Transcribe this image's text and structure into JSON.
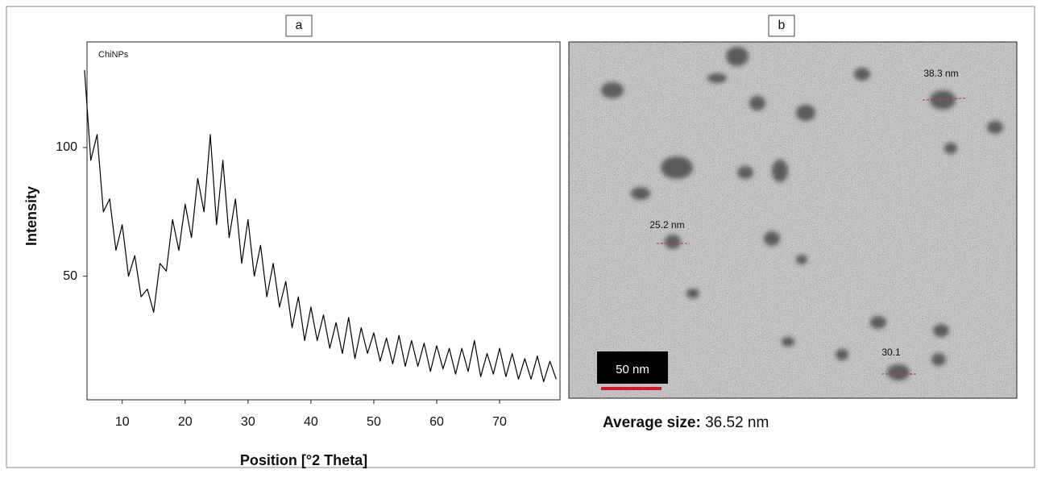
{
  "chart_data": {
    "type": "line",
    "series_label": "ChiNPs",
    "x_label": "Position [°2 Theta]",
    "y_label": "Intensity",
    "color": "#000000",
    "x": [
      4,
      5,
      6,
      7,
      8,
      9,
      10,
      11,
      12,
      13,
      14,
      15,
      16,
      17,
      18,
      19,
      20,
      21,
      22,
      23,
      24,
      25,
      26,
      27,
      28,
      29,
      30,
      31,
      32,
      33,
      34,
      35,
      36,
      37,
      38,
      39,
      40,
      41,
      42,
      43,
      44,
      45,
      46,
      47,
      48,
      49,
      50,
      51,
      52,
      53,
      54,
      55,
      56,
      57,
      58,
      59,
      60,
      61,
      62,
      63,
      64,
      65,
      66,
      67,
      68,
      69,
      70,
      71,
      72,
      73,
      74,
      75,
      76,
      77,
      78,
      79
    ],
    "values": [
      130,
      95,
      105,
      75,
      80,
      60,
      70,
      50,
      58,
      42,
      45,
      36,
      55,
      52,
      72,
      60,
      78,
      65,
      88,
      75,
      105,
      70,
      95,
      65,
      80,
      55,
      72,
      50,
      62,
      42,
      55,
      38,
      48,
      30,
      42,
      25,
      38,
      25,
      35,
      22,
      32,
      20,
      34,
      18,
      30,
      20,
      28,
      17,
      26,
      16,
      27,
      15,
      25,
      15,
      24,
      13,
      23,
      14,
      22,
      12,
      22,
      13,
      25,
      11,
      20,
      12,
      22,
      11,
      20,
      10,
      18,
      10,
      19,
      9,
      17,
      10
    ],
    "xlim": [
      4.4,
      79.6
    ],
    "ylim": [
      2,
      141
    ],
    "xticks": [
      10,
      20,
      30,
      40,
      50,
      60,
      70
    ],
    "yticks": [
      50,
      100
    ]
  },
  "panel_labels": [
    "a",
    "b"
  ],
  "image": {
    "annotations": [
      "38.3 nm",
      "25.2 nm",
      "30.1"
    ],
    "scale_bar": "50 nm",
    "caption_label": "Average size:",
    "caption_value": "36.52 nm"
  }
}
